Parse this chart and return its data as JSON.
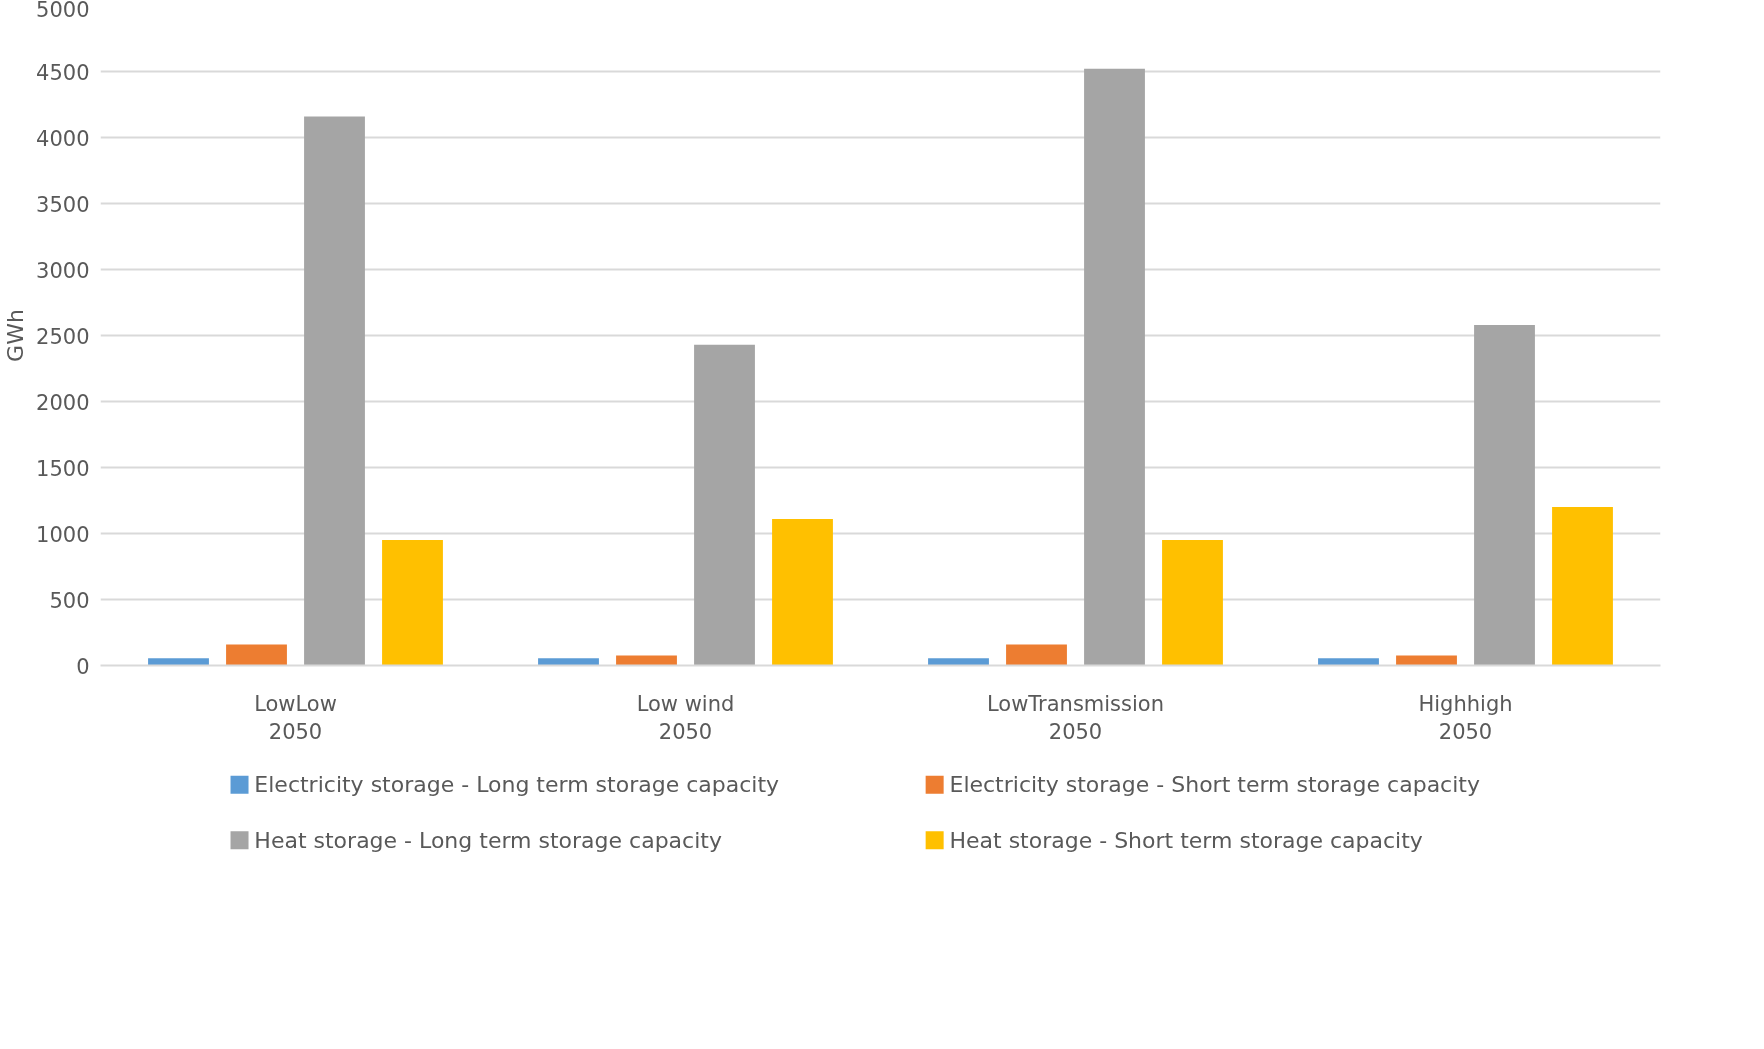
{
  "chart_data": {
    "type": "bar",
    "ylabel": "GWh",
    "categories": [
      "LowLow\n2050",
      "Low wind\n2050",
      "LowTransmission\n2050",
      "Highhigh\n2050"
    ],
    "series": [
      {
        "name": "Electricity storage - Long term storage capacity",
        "color": "#5b9bd5",
        "values": [
          55,
          55,
          55,
          55
        ]
      },
      {
        "name": "Electricity storage - Short term storage capacity",
        "color": "#ed7d31",
        "values": [
          160,
          75,
          160,
          75
        ]
      },
      {
        "name": "Heat storage - Long term storage capacity",
        "color": "#a5a5a5",
        "values": [
          4160,
          2430,
          4520,
          2580
        ]
      },
      {
        "name": "Heat storage - Short term storage capacity",
        "color": "#ffc000",
        "values": [
          950,
          1110,
          950,
          1200
        ]
      }
    ],
    "ylim": [
      0,
      5000
    ],
    "yticks": [
      0,
      500,
      1000,
      1500,
      2000,
      2500,
      3000,
      3500,
      4000,
      4500,
      5000
    ],
    "grid": "y",
    "legend": "bottom"
  }
}
